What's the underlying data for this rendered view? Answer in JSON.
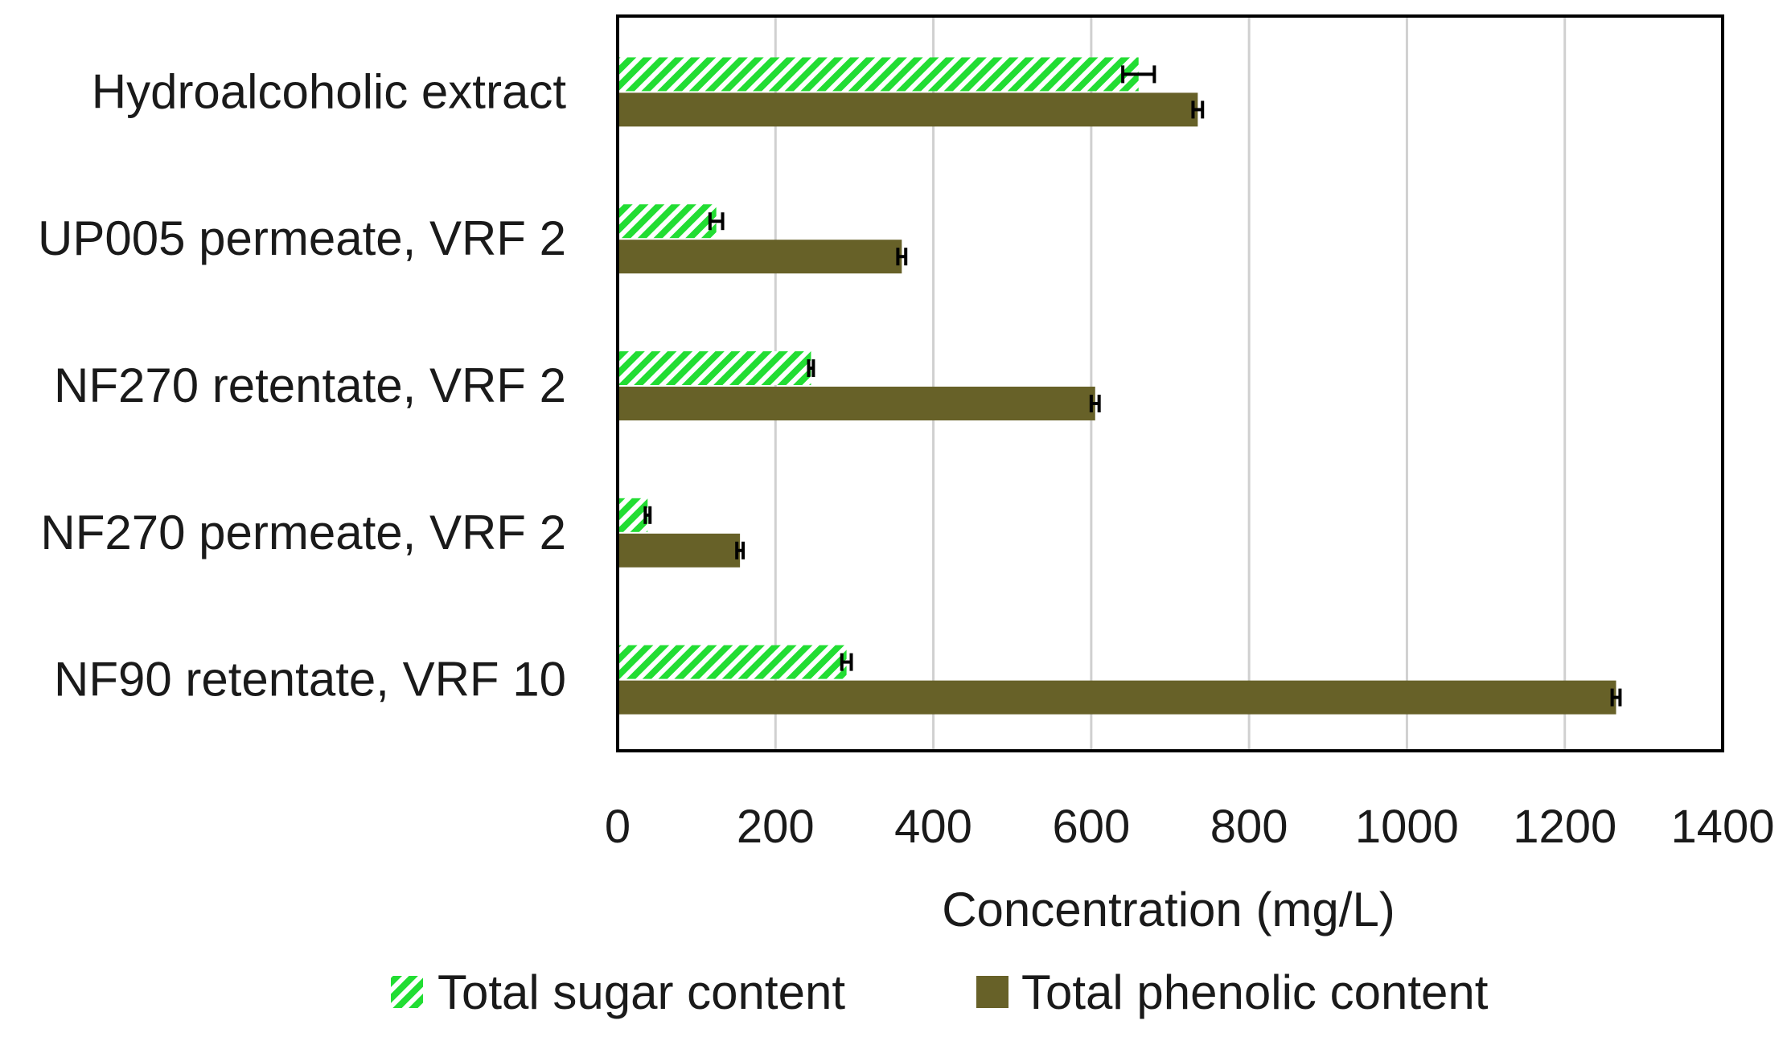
{
  "chart_data": {
    "type": "bar",
    "orientation": "horizontal",
    "title": "",
    "xlabel": "Concentration (mg/L)",
    "ylabel": "",
    "xlim": [
      0,
      1400
    ],
    "xticks": [
      0,
      200,
      400,
      600,
      800,
      1000,
      1200,
      1400
    ],
    "grid": true,
    "legend_position": "bottom",
    "categories": [
      "Hydroalcoholic extract",
      "UP005 permeate, VRF 2",
      "NF270 retentate, VRF 2",
      "NF270 permeate, VRF 2",
      "NF90 retentate, VRF 10"
    ],
    "series": [
      {
        "name": "Total sugar content",
        "pattern": "hatched",
        "color": "#22dd33",
        "values": [
          660,
          125,
          245,
          38,
          290
        ],
        "errors": [
          20,
          8,
          3,
          3,
          6
        ]
      },
      {
        "name": "Total phenolic content",
        "pattern": "solid",
        "color": "#676128",
        "values": [
          735,
          360,
          605,
          155,
          1265
        ],
        "errors": [
          6,
          5,
          5,
          4,
          5
        ]
      }
    ]
  }
}
